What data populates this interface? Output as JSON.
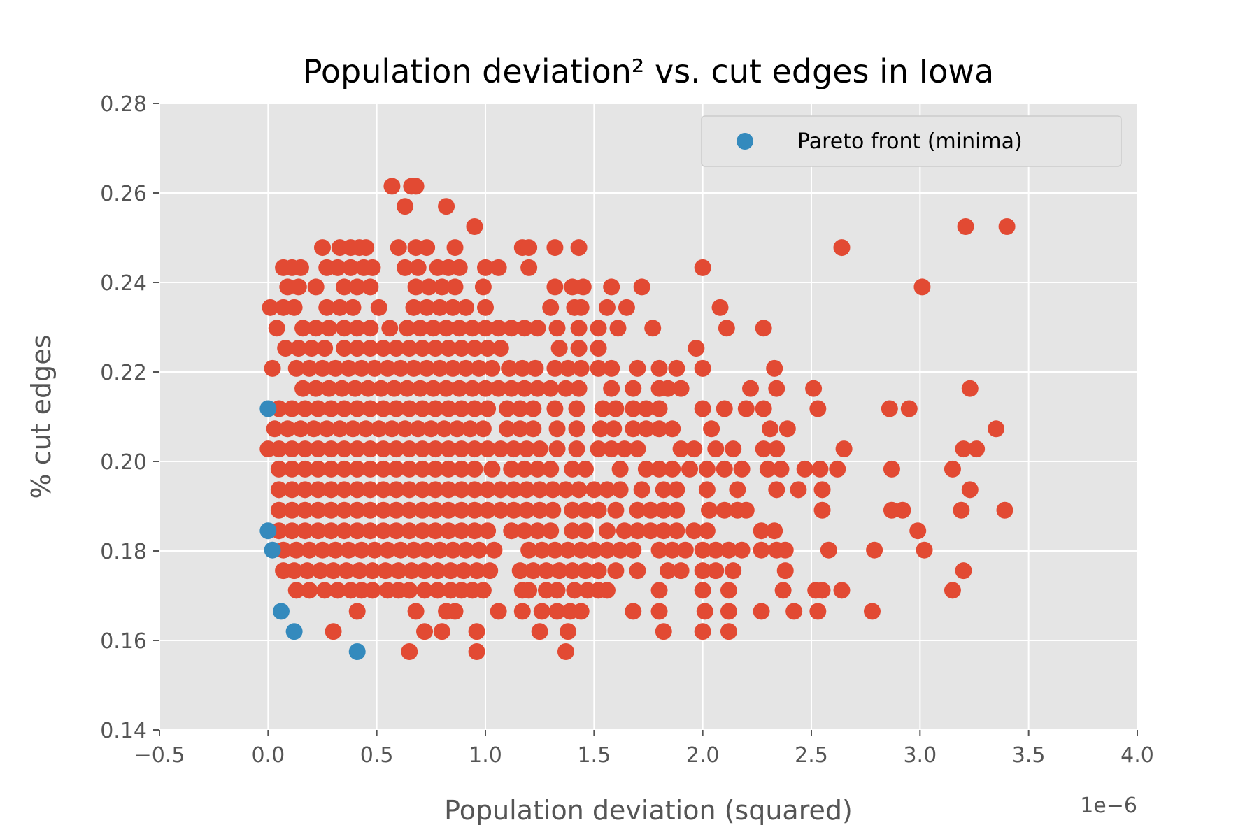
{
  "chart_data": {
    "type": "scatter",
    "title": "Population deviation² vs. cut edges in Iowa",
    "xlabel": "Population deviation (squared)",
    "ylabel": "% cut edges",
    "x_offset_label": "1e−6",
    "x_scale": 1e-06,
    "xlim": [
      -0.5,
      4.0
    ],
    "ylim": [
      0.14,
      0.28
    ],
    "x_ticks": [
      -0.5,
      0.0,
      0.5,
      1.0,
      1.5,
      2.0,
      2.5,
      3.0,
      3.5,
      4.0
    ],
    "x_tick_labels": [
      "−0.5",
      "0.0",
      "0.5",
      "1.0",
      "1.5",
      "2.0",
      "2.5",
      "3.0",
      "3.5",
      "4.0"
    ],
    "y_ticks": [
      0.14,
      0.16,
      0.18,
      0.2,
      0.22,
      0.24,
      0.26,
      0.28
    ],
    "y_tick_labels": [
      "0.14",
      "0.16",
      "0.18",
      "0.20",
      "0.22",
      "0.24",
      "0.26",
      "0.28"
    ],
    "grid": true,
    "legend": {
      "position": "top-right",
      "entries": [
        "Pareto front (minima)"
      ]
    },
    "colors": {
      "background": "#E5E5E5",
      "grid": "#FFFFFF",
      "all_plans": "#E24A33",
      "pareto": "#348ABD"
    },
    "series": [
      {
        "color": "#E24A33",
        "clusters": [
          {
            "y": 0.1575,
            "x": [
              0.65,
              0.96,
              1.37
            ]
          },
          {
            "y": 0.162,
            "x": [
              0.3,
              0.72,
              0.8,
              0.96,
              1.25,
              1.38,
              1.82,
              2.0,
              2.12
            ]
          },
          {
            "y": 0.1665,
            "x": [
              0.41,
              0.68,
              0.82,
              0.86,
              1.06,
              1.17,
              1.26,
              1.33,
              1.39,
              1.44,
              1.68,
              1.8,
              2.01,
              2.12,
              2.27,
              2.42,
              2.53,
              2.78
            ]
          },
          {
            "y": 0.1712,
            "x": [
              0.13,
              0.19,
              0.26,
              0.32,
              0.38,
              0.43,
              0.48,
              0.55,
              0.6,
              0.65,
              0.72,
              0.78,
              0.84,
              0.89,
              0.94,
              0.99,
              1.17,
              1.2,
              1.28,
              1.33,
              1.41,
              1.47,
              1.52,
              1.56,
              1.8,
              2.0,
              2.12,
              2.37,
              2.52,
              2.55,
              2.64,
              3.15
            ]
          },
          {
            "y": 0.1756,
            "x": [
              0.07,
              0.12,
              0.18,
              0.24,
              0.3,
              0.36,
              0.42,
              0.48,
              0.54,
              0.6,
              0.66,
              0.72,
              0.78,
              0.84,
              0.9,
              0.96,
              1.02,
              1.16,
              1.22,
              1.28,
              1.34,
              1.4,
              1.46,
              1.52,
              1.6,
              1.7,
              1.84,
              1.9,
              2.0,
              2.06,
              2.14,
              2.38,
              3.2
            ]
          },
          {
            "y": 0.1802,
            "x": [
              0.07,
              0.13,
              0.19,
              0.25,
              0.31,
              0.37,
              0.43,
              0.49,
              0.55,
              0.61,
              0.67,
              0.73,
              0.79,
              0.85,
              0.91,
              0.97,
              1.04,
              1.2,
              1.26,
              1.32,
              1.38,
              1.44,
              1.5,
              1.56,
              1.62,
              1.68,
              1.8,
              1.86,
              1.92,
              2.0,
              2.06,
              2.12,
              2.18,
              2.27,
              2.34,
              2.38,
              2.58,
              2.79,
              3.02
            ]
          },
          {
            "y": 0.1845,
            "x": [
              0.05,
              0.11,
              0.17,
              0.23,
              0.29,
              0.35,
              0.41,
              0.47,
              0.53,
              0.59,
              0.65,
              0.71,
              0.77,
              0.83,
              0.89,
              0.95,
              1.01,
              1.12,
              1.18,
              1.24,
              1.3,
              1.4,
              1.46,
              1.56,
              1.64,
              1.7,
              1.76,
              1.82,
              1.88,
              1.96,
              2.02,
              2.27,
              2.33,
              2.99
            ]
          },
          {
            "y": 0.1891,
            "x": [
              0.05,
              0.11,
              0.17,
              0.23,
              0.29,
              0.35,
              0.41,
              0.47,
              0.53,
              0.59,
              0.65,
              0.71,
              0.77,
              0.83,
              0.89,
              0.95,
              1.01,
              1.07,
              1.13,
              1.19,
              1.25,
              1.31,
              1.4,
              1.46,
              1.52,
              1.6,
              1.7,
              1.76,
              1.82,
              1.88,
              2.03,
              2.1,
              2.16,
              2.2,
              2.55,
              2.87,
              2.92,
              3.19,
              3.39
            ]
          },
          {
            "y": 0.1937,
            "x": [
              0.05,
              0.11,
              0.17,
              0.23,
              0.29,
              0.35,
              0.41,
              0.47,
              0.53,
              0.59,
              0.65,
              0.71,
              0.77,
              0.83,
              0.89,
              0.95,
              1.01,
              1.07,
              1.13,
              1.19,
              1.25,
              1.31,
              1.37,
              1.43,
              1.5,
              1.56,
              1.62,
              1.72,
              1.82,
              1.88,
              2.02,
              2.16,
              2.34,
              2.44,
              2.55,
              3.23
            ]
          },
          {
            "y": 0.1983,
            "x": [
              0.05,
              0.11,
              0.17,
              0.23,
              0.29,
              0.35,
              0.41,
              0.47,
              0.53,
              0.59,
              0.65,
              0.71,
              0.77,
              0.83,
              0.89,
              0.95,
              1.03,
              1.12,
              1.18,
              1.24,
              1.3,
              1.4,
              1.46,
              1.62,
              1.74,
              1.8,
              1.86,
              1.94,
              2.02,
              2.1,
              2.18,
              2.3,
              2.36,
              2.47,
              2.54,
              2.62,
              2.87,
              3.15
            ]
          },
          {
            "y": 0.2028,
            "x": [
              0.0,
              0.05,
              0.11,
              0.17,
              0.23,
              0.29,
              0.35,
              0.41,
              0.47,
              0.53,
              0.59,
              0.65,
              0.71,
              0.77,
              0.83,
              0.89,
              0.95,
              1.01,
              1.07,
              1.13,
              1.19,
              1.25,
              1.33,
              1.42,
              1.52,
              1.58,
              1.64,
              1.7,
              1.9,
              1.96,
              2.06,
              2.14,
              2.28,
              2.34,
              2.65,
              3.2,
              3.26
            ]
          },
          {
            "y": 0.2073,
            "x": [
              0.03,
              0.09,
              0.15,
              0.21,
              0.27,
              0.33,
              0.39,
              0.45,
              0.51,
              0.57,
              0.63,
              0.69,
              0.75,
              0.81,
              0.87,
              0.93,
              0.99,
              1.1,
              1.16,
              1.22,
              1.33,
              1.42,
              1.53,
              1.59,
              1.68,
              1.74,
              1.8,
              1.86,
              2.04,
              2.31,
              2.39,
              3.35
            ]
          },
          {
            "y": 0.2118,
            "x": [
              0.05,
              0.11,
              0.17,
              0.23,
              0.29,
              0.35,
              0.41,
              0.47,
              0.53,
              0.59,
              0.65,
              0.71,
              0.77,
              0.83,
              0.89,
              0.95,
              1.01,
              1.1,
              1.16,
              1.22,
              1.32,
              1.42,
              1.54,
              1.6,
              1.68,
              1.74,
              1.8,
              2.0,
              2.1,
              2.2,
              2.28,
              2.53,
              2.86,
              2.95
            ]
          },
          {
            "y": 0.2163,
            "x": [
              0.16,
              0.22,
              0.28,
              0.34,
              0.4,
              0.46,
              0.52,
              0.58,
              0.64,
              0.7,
              0.76,
              0.82,
              0.88,
              0.94,
              1.0,
              1.06,
              1.12,
              1.18,
              1.24,
              1.3,
              1.37,
              1.43,
              1.58,
              1.68,
              1.8,
              1.84,
              1.9,
              2.22,
              2.34,
              2.51,
              3.23
            ]
          },
          {
            "y": 0.2208,
            "x": [
              0.02,
              0.13,
              0.19,
              0.25,
              0.31,
              0.37,
              0.43,
              0.49,
              0.55,
              0.61,
              0.67,
              0.73,
              0.79,
              0.85,
              0.91,
              0.97,
              1.03,
              1.11,
              1.17,
              1.23,
              1.32,
              1.38,
              1.44,
              1.52,
              1.58,
              1.7,
              1.8,
              1.88,
              2.0,
              2.33
            ]
          },
          {
            "y": 0.2253,
            "x": [
              0.08,
              0.14,
              0.2,
              0.26,
              0.35,
              0.41,
              0.47,
              0.53,
              0.59,
              0.65,
              0.71,
              0.77,
              0.83,
              0.89,
              0.95,
              1.01,
              1.07,
              1.34,
              1.43,
              1.52,
              1.97
            ]
          },
          {
            "y": 0.2298,
            "x": [
              0.04,
              0.16,
              0.22,
              0.28,
              0.35,
              0.41,
              0.47,
              0.56,
              0.64,
              0.7,
              0.76,
              0.82,
              0.88,
              0.94,
              1.0,
              1.06,
              1.12,
              1.18,
              1.24,
              1.33,
              1.43,
              1.52,
              1.61,
              1.77,
              2.11,
              2.28
            ]
          },
          {
            "y": 0.2344,
            "x": [
              0.01,
              0.07,
              0.12,
              0.27,
              0.33,
              0.39,
              0.51,
              0.67,
              0.73,
              0.79,
              0.85,
              0.91,
              1.0,
              1.3,
              1.41,
              1.44,
              1.56,
              1.65,
              2.08
            ]
          },
          {
            "y": 0.239,
            "x": [
              0.09,
              0.14,
              0.22,
              0.35,
              0.41,
              0.47,
              0.68,
              0.74,
              0.8,
              0.86,
              0.99,
              1.32,
              1.4,
              1.45,
              1.58,
              1.72,
              3.01
            ]
          },
          {
            "y": 0.2433,
            "x": [
              0.07,
              0.11,
              0.15,
              0.27,
              0.32,
              0.38,
              0.44,
              0.48,
              0.63,
              0.69,
              0.78,
              0.83,
              0.88,
              1.0,
              1.06,
              1.2,
              2.0
            ]
          },
          {
            "y": 0.2478,
            "x": [
              0.25,
              0.33,
              0.38,
              0.42,
              0.45,
              0.6,
              0.68,
              0.73,
              0.86,
              1.17,
              1.2,
              1.32,
              1.43,
              2.64
            ]
          },
          {
            "y": 0.2525,
            "x": [
              0.95,
              3.21,
              3.4
            ]
          },
          {
            "y": 0.257,
            "x": [
              0.63,
              0.82
            ]
          },
          {
            "y": 0.2615,
            "x": [
              0.57,
              0.66,
              0.68
            ]
          }
        ]
      },
      {
        "name": "Pareto front (minima)",
        "color": "#348ABD",
        "points": [
          {
            "x": 0.0,
            "y": 0.2118
          },
          {
            "x": 0.0,
            "y": 0.1845
          },
          {
            "x": 0.02,
            "y": 0.1802
          },
          {
            "x": 0.06,
            "y": 0.1665
          },
          {
            "x": 0.12,
            "y": 0.162
          },
          {
            "x": 0.41,
            "y": 0.1575
          }
        ]
      }
    ]
  }
}
